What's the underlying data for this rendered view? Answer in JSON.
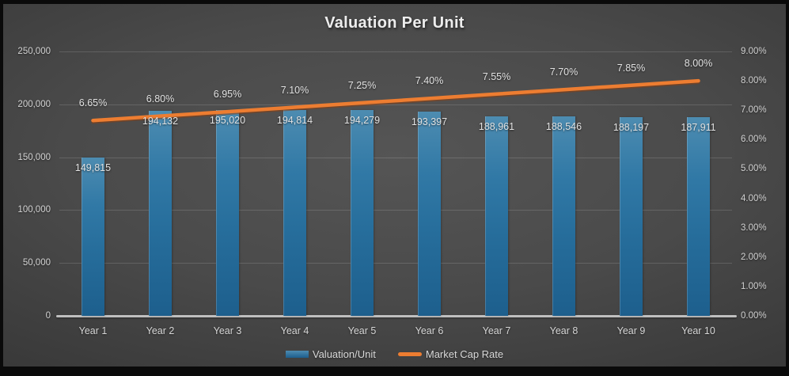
{
  "title": "Valuation Per Unit",
  "legend": {
    "items": [
      {
        "label": "Valuation/Unit",
        "type": "bar",
        "color": "#2E75A3"
      },
      {
        "label": "Market Cap Rate",
        "type": "line",
        "color": "#ED7D31"
      }
    ],
    "position": "bottom"
  },
  "chart_data": {
    "type": "combo",
    "title": "Valuation Per Unit",
    "categories": [
      "Year 1",
      "Year 2",
      "Year 3",
      "Year 4",
      "Year 5",
      "Year 6",
      "Year 7",
      "Year 8",
      "Year 9",
      "Year 10"
    ],
    "series": [
      {
        "name": "Valuation/Unit",
        "type": "bar",
        "axis": "left",
        "color": "#2E75A3",
        "values": [
          149815,
          194132,
          195020,
          194814,
          194279,
          193397,
          188961,
          188546,
          188197,
          187911
        ],
        "labels": [
          "149,815",
          "194,132",
          "195,020",
          "194,814",
          "194,279",
          "193,397",
          "188,961",
          "188,546",
          "188,197",
          "187,911"
        ]
      },
      {
        "name": "Market Cap Rate",
        "type": "line",
        "axis": "right",
        "color": "#ED7D31",
        "values": [
          6.65,
          6.8,
          6.95,
          7.1,
          7.25,
          7.4,
          7.55,
          7.7,
          7.85,
          8.0
        ],
        "labels": [
          "6.65%",
          "6.80%",
          "6.95%",
          "7.10%",
          "7.25%",
          "7.40%",
          "7.55%",
          "7.70%",
          "7.85%",
          "8.00%"
        ]
      }
    ],
    "left_axis": {
      "min": 0,
      "max": 250000,
      "step": 50000,
      "tick_labels": [
        "0",
        "50,000",
        "100,000",
        "150,000",
        "200,000",
        "250,000"
      ]
    },
    "right_axis": {
      "min": 0,
      "max": 9,
      "step": 1,
      "tick_labels": [
        "0.00%",
        "1.00%",
        "2.00%",
        "3.00%",
        "4.00%",
        "5.00%",
        "6.00%",
        "7.00%",
        "8.00%",
        "9.00%"
      ]
    },
    "grid": true,
    "legend_position": "bottom"
  }
}
